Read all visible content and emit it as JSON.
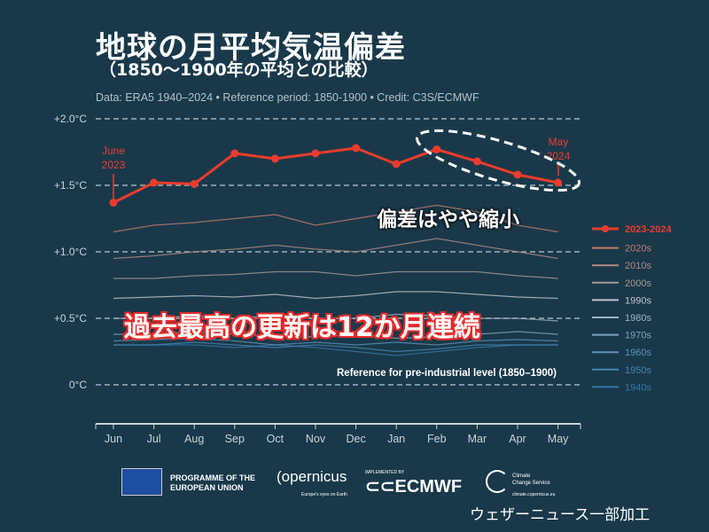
{
  "header": {
    "title": "地球の月平均気温偏差",
    "subtitle": "（1850〜1900年の平均との比較）",
    "source": "Data: ERA5 1940–2024 • Reference period: 1850-1900 • Credit: C3S/ECMWF"
  },
  "annotations": {
    "start_label": [
      "June",
      "2023"
    ],
    "end_label": [
      "May",
      "2024"
    ],
    "shrink": "偏差はやや縮小",
    "record": "過去最高の更新は12か月連続",
    "reference": "Reference for pre-industrial level (1850–1900)"
  },
  "chart_data": {
    "type": "line",
    "categories": [
      "Jun",
      "Jul",
      "Aug",
      "Sep",
      "Oct",
      "Nov",
      "Dec",
      "Jan",
      "Feb",
      "Mar",
      "Apr",
      "May"
    ],
    "ylim": [
      -0.3,
      2.0
    ],
    "yticks": [
      0,
      0.5,
      1.0,
      1.5,
      2.0
    ],
    "ytick_labels": [
      "0°C",
      "+0.5°C",
      "+1.0°C",
      "+1.5°C",
      "+2.0°C"
    ],
    "legend_position": "right",
    "series": [
      {
        "name": "2023-2024",
        "color": "#ec3b2c",
        "values": [
          1.37,
          1.52,
          1.51,
          1.74,
          1.7,
          1.74,
          1.78,
          1.66,
          1.77,
          1.68,
          1.58,
          1.52
        ]
      },
      {
        "name": "2020s",
        "color": "#c57a68",
        "values": [
          1.15,
          1.2,
          1.22,
          1.25,
          1.28,
          1.2,
          1.25,
          1.3,
          1.35,
          1.3,
          1.2,
          1.15
        ]
      },
      {
        "name": "2010s",
        "color": "#b28a7e",
        "values": [
          0.95,
          0.97,
          1.0,
          1.02,
          1.05,
          1.02,
          1.0,
          1.05,
          1.1,
          1.05,
          1.0,
          0.95
        ]
      },
      {
        "name": "2000s",
        "color": "#a99890",
        "values": [
          0.8,
          0.8,
          0.82,
          0.83,
          0.85,
          0.85,
          0.82,
          0.85,
          0.85,
          0.85,
          0.82,
          0.8
        ]
      },
      {
        "name": "1990s",
        "color": "#bfc3c6",
        "values": [
          0.65,
          0.66,
          0.67,
          0.66,
          0.68,
          0.65,
          0.67,
          0.7,
          0.7,
          0.68,
          0.66,
          0.65
        ]
      },
      {
        "name": "1980s",
        "color": "#9fb2bf",
        "values": [
          0.5,
          0.5,
          0.52,
          0.5,
          0.52,
          0.5,
          0.5,
          0.53,
          0.52,
          0.5,
          0.5,
          0.48
        ]
      },
      {
        "name": "1970s",
        "color": "#7aa3bd",
        "values": [
          0.38,
          0.38,
          0.4,
          0.38,
          0.37,
          0.36,
          0.38,
          0.35,
          0.36,
          0.38,
          0.4,
          0.38
        ]
      },
      {
        "name": "1960s",
        "color": "#5a91b7",
        "values": [
          0.33,
          0.34,
          0.35,
          0.33,
          0.3,
          0.32,
          0.3,
          0.32,
          0.3,
          0.33,
          0.34,
          0.33
        ]
      },
      {
        "name": "1950s",
        "color": "#4784b2",
        "values": [
          0.3,
          0.3,
          0.32,
          0.3,
          0.28,
          0.3,
          0.28,
          0.25,
          0.27,
          0.3,
          0.3,
          0.3
        ]
      },
      {
        "name": "1940s",
        "color": "#3674a8",
        "values": [
          0.3,
          0.3,
          0.3,
          0.28,
          0.3,
          0.28,
          0.25,
          0.22,
          0.25,
          0.28,
          0.3,
          0.3
        ]
      }
    ]
  },
  "footer": {
    "eu": [
      "PROGRAMME OF THE",
      "EUROPEAN UNION"
    ],
    "copernicus": "opernicus",
    "copernicus_sub": "Europe's eyes on Earth",
    "ecmwf_impl": "IMPLEMENTED BY",
    "ecmwf": "ECMWF",
    "c3s": [
      "Climate",
      "Change Service"
    ],
    "c3s_url": "climate.copernicus.eu",
    "credit": "ウェザーニュース一部加工"
  }
}
